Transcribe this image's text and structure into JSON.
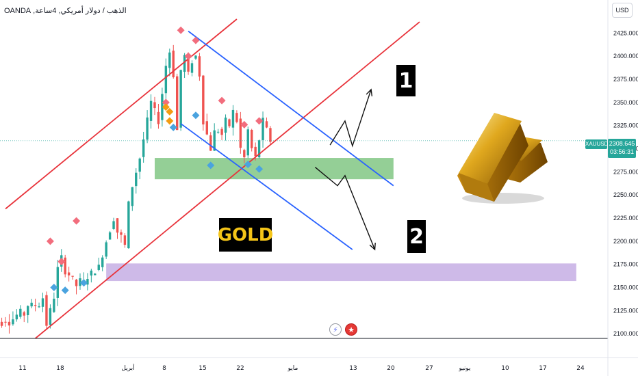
{
  "header": {
    "symbol_title": "الذهب / دولار أمريكي, 4ساعة, OANDA",
    "currency": "USD"
  },
  "price_tag": {
    "symbol": "XAUUSD",
    "price": "2308.645",
    "countdown": "03:56:31"
  },
  "labels": {
    "one": "1",
    "two": "2",
    "gold": "GOLD"
  },
  "icons": {
    "events": [
      "lightning-icon",
      "us-flag-icon"
    ]
  },
  "colors": {
    "up_candle": "#26a69a",
    "down_candle": "#ef5350",
    "red_channel": "#e8333b",
    "blue_channel": "#2962ff",
    "green_zone": "#81c784",
    "purple_zone": "#c9b3e6",
    "pivot_high": "#f26d7d",
    "pivot_low": "#4aa3df",
    "accent_pivot": "#f39c12"
  },
  "chart_data": {
    "type": "candlestick",
    "symbol": "XAUUSD",
    "timeframe": "4h",
    "ylim": [
      2095,
      2440
    ],
    "y_ticks": [
      "2425.000",
      "2400.000",
      "2375.000",
      "2350.000",
      "2325.000",
      "2300.000",
      "2275.000",
      "2250.000",
      "2225.000",
      "2200.000",
      "2175.000",
      "2150.000",
      "2125.000",
      "2100.000"
    ],
    "x_ticks": [
      "11",
      "18",
      "أبريل",
      "8",
      "15",
      "22",
      "مايو",
      "13",
      "20",
      "27",
      "يونيو",
      "10",
      "17",
      "24"
    ],
    "last_price": 2308.645,
    "close_path": [
      [
        11,
        2110
      ],
      [
        13,
        2140
      ],
      [
        14,
        2170
      ],
      [
        15,
        2182
      ],
      [
        16,
        2168
      ],
      [
        17,
        2164
      ],
      [
        18,
        2158
      ],
      [
        19,
        2152
      ],
      [
        20,
        2157
      ],
      [
        21,
        2156
      ],
      [
        22,
        2162
      ],
      [
        25,
        2172
      ],
      [
        27,
        2200
      ],
      [
        29,
        2225
      ],
      [
        30,
        2210
      ],
      [
        31,
        2205
      ],
      [
        32,
        2195
      ],
      [
        33,
        2240
      ],
      [
        34,
        2260
      ],
      [
        35,
        2275
      ],
      [
        36,
        2290
      ],
      [
        37,
        2310
      ],
      [
        38,
        2330
      ],
      [
        39,
        2350
      ],
      [
        40,
        2340
      ],
      [
        41,
        2330
      ],
      [
        42,
        2360
      ],
      [
        43,
        2390
      ],
      [
        44,
        2405
      ],
      [
        45,
        2380
      ],
      [
        46,
        2320
      ],
      [
        47,
        2385
      ],
      [
        48,
        2400
      ],
      [
        49,
        2380
      ],
      [
        50,
        2395
      ],
      [
        51,
        2400
      ],
      [
        52,
        2380
      ],
      [
        53,
        2330
      ],
      [
        54,
        2315
      ],
      [
        55,
        2300
      ],
      [
        56,
        2318
      ],
      [
        57,
        2320
      ],
      [
        58,
        2315
      ],
      [
        59,
        2330
      ],
      [
        60,
        2325
      ],
      [
        61,
        2340
      ],
      [
        62,
        2330
      ],
      [
        63,
        2300
      ],
      [
        64,
        2290
      ],
      [
        65,
        2320
      ],
      [
        66,
        2300
      ],
      [
        67,
        2290
      ],
      [
        68,
        2310
      ],
      [
        69,
        2330
      ],
      [
        70,
        2320
      ],
      [
        71,
        2308.645
      ]
    ],
    "pivot_highs": [
      [
        12,
        2200
      ],
      [
        15,
        2178
      ],
      [
        19,
        2222
      ],
      [
        43,
        2350
      ],
      [
        47,
        2428
      ],
      [
        49,
        2400
      ],
      [
        51,
        2417
      ],
      [
        58,
        2352
      ],
      [
        64,
        2326
      ],
      [
        68,
        2330
      ]
    ],
    "pivot_lows": [
      [
        13,
        2150
      ],
      [
        16,
        2147
      ],
      [
        21,
        2155
      ],
      [
        45,
        2323
      ],
      [
        51,
        2336
      ],
      [
        55,
        2282
      ],
      [
        65,
        2283
      ],
      [
        68,
        2278
      ]
    ],
    "accent_pivots": [
      [
        43,
        2345
      ],
      [
        44,
        2340
      ],
      [
        44,
        2330
      ]
    ],
    "zones": [
      {
        "kind": "green",
        "from": [
          40,
          2267
        ],
        "to": [
          104,
          2290
        ]
      },
      {
        "kind": "purple",
        "from": [
          27,
          2157
        ],
        "to": [
          153,
          2176
        ]
      }
    ],
    "red_channel": {
      "lower": [
        [
          8,
          2095
        ],
        [
          111,
          2437
        ]
      ],
      "upper": [
        [
          0,
          2235
        ],
        [
          62,
          2440
        ]
      ]
    },
    "blue_channel": {
      "upper": [
        [
          49,
          2427
        ],
        [
          104,
          2260
        ]
      ],
      "lower": [
        [
          47,
          2327
        ],
        [
          93,
          2191
        ]
      ]
    },
    "projection_up": [
      [
        87,
        2304
      ],
      [
        91,
        2330
      ],
      [
        93,
        2303
      ],
      [
        98,
        2364
      ]
    ],
    "projection_down": [
      [
        83,
        2280
      ],
      [
        89,
        2260
      ],
      [
        91,
        2271
      ],
      [
        99,
        2191
      ]
    ]
  }
}
